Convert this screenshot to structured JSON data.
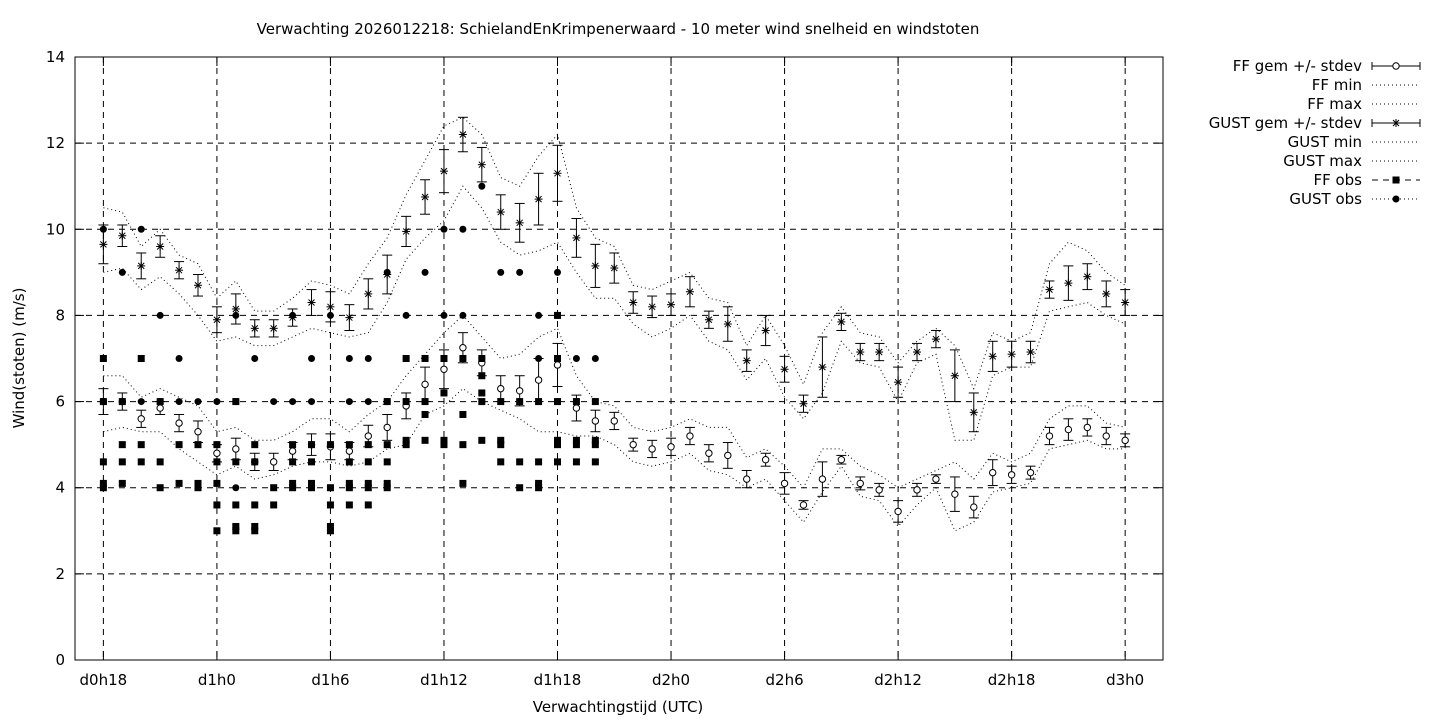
{
  "chart_data": {
    "type": "line",
    "title": "Verwachting 2026012218: SchielandEnKrimpenerwaard - 10 meter wind snelheid en windstoten",
    "xlabel": "Verwachtingstijd (UTC)",
    "ylabel": "Wind(stoten) (m/s)",
    "ylim": [
      0,
      14
    ],
    "yticks": [
      0,
      2,
      4,
      6,
      8,
      10,
      12,
      14
    ],
    "xlim": [
      -1.5,
      56
    ],
    "xticks": [
      {
        "x": 0,
        "label": "d0h18"
      },
      {
        "x": 6,
        "label": "d1h0"
      },
      {
        "x": 12,
        "label": "d1h6"
      },
      {
        "x": 18,
        "label": "d1h12"
      },
      {
        "x": 24,
        "label": "d1h18"
      },
      {
        "x": 30,
        "label": "d2h0"
      },
      {
        "x": 36,
        "label": "d2h6"
      },
      {
        "x": 42,
        "label": "d2h12"
      },
      {
        "x": 48,
        "label": "d2h18"
      },
      {
        "x": 54,
        "label": "d3h0"
      }
    ],
    "grid": true,
    "legend_position": "outside-right",
    "legend": [
      "FF gem +/- stdev",
      "FF min",
      "FF max",
      "GUST gem +/- stdev",
      "GUST min",
      "GUST max",
      "FF obs",
      "GUST obs"
    ],
    "x": [
      0,
      1,
      2,
      3,
      4,
      5,
      6,
      7,
      8,
      9,
      10,
      11,
      12,
      13,
      14,
      15,
      16,
      17,
      18,
      19,
      20,
      21,
      22,
      23,
      24,
      25,
      26,
      27,
      28,
      29,
      30,
      31,
      32,
      33,
      34,
      35,
      36,
      37,
      38,
      39,
      40,
      41,
      42,
      43,
      44,
      45,
      46,
      47,
      48,
      49,
      50,
      51,
      52,
      53,
      54
    ],
    "ff_mean": [
      6.0,
      6.0,
      5.6,
      5.85,
      5.5,
      5.3,
      4.8,
      4.9,
      4.6,
      4.6,
      4.85,
      5.0,
      4.95,
      4.85,
      5.2,
      5.4,
      5.9,
      6.4,
      6.75,
      7.25,
      6.9,
      6.3,
      6.25,
      6.5,
      6.85,
      5.85,
      5.55,
      5.55,
      5.0,
      4.9,
      4.95,
      5.2,
      4.8,
      4.75,
      4.2,
      4.65,
      4.1,
      3.6,
      4.2,
      4.65,
      4.1,
      3.95,
      3.45,
      3.95,
      4.2,
      3.85,
      3.55,
      4.35,
      4.3,
      4.35,
      5.2,
      5.35,
      5.4,
      5.2,
      5.1
    ],
    "ff_std": [
      0.3,
      0.2,
      0.2,
      0.15,
      0.2,
      0.25,
      0.2,
      0.25,
      0.2,
      0.2,
      0.2,
      0.25,
      0.3,
      0.2,
      0.25,
      0.3,
      0.3,
      0.4,
      0.45,
      0.35,
      0.3,
      0.3,
      0.35,
      0.5,
      0.5,
      0.3,
      0.25,
      0.2,
      0.15,
      0.2,
      0.2,
      0.2,
      0.2,
      0.3,
      0.2,
      0.15,
      0.25,
      0.1,
      0.4,
      0.1,
      0.15,
      0.15,
      0.25,
      0.15,
      0.1,
      0.4,
      0.25,
      0.3,
      0.2,
      0.15,
      0.2,
      0.25,
      0.2,
      0.2,
      0.15
    ],
    "ff_min": [
      5.3,
      5.4,
      5.3,
      5.3,
      4.9,
      4.6,
      4.3,
      4.5,
      4.2,
      4.3,
      4.5,
      4.6,
      4.6,
      4.5,
      4.6,
      4.9,
      5.0,
      5.7,
      5.9,
      6.3,
      6.0,
      5.8,
      5.6,
      5.3,
      5.3,
      5.2,
      5.2,
      5.0,
      4.6,
      4.5,
      4.6,
      4.8,
      4.4,
      4.3,
      4.0,
      4.2,
      3.7,
      3.2,
      3.9,
      4.5,
      3.8,
      3.7,
      3.1,
      3.6,
      4.0,
      3.0,
      3.2,
      3.9,
      4.0,
      4.1,
      4.9,
      5.0,
      5.1,
      4.9,
      4.9
    ],
    "ff_max": [
      6.6,
      6.6,
      6.1,
      6.3,
      6.1,
      5.9,
      5.3,
      5.4,
      5.1,
      5.1,
      5.3,
      5.6,
      5.6,
      5.3,
      5.7,
      6.0,
      6.6,
      7.1,
      7.6,
      8.0,
      7.5,
      7.0,
      7.1,
      7.5,
      7.7,
      6.6,
      6.0,
      5.9,
      5.4,
      5.3,
      5.4,
      5.6,
      5.4,
      5.4,
      4.7,
      4.9,
      4.5,
      4.0,
      4.9,
      4.9,
      4.5,
      4.3,
      4.0,
      4.2,
      4.4,
      4.6,
      4.2,
      4.8,
      4.6,
      4.8,
      5.6,
      5.9,
      5.9,
      5.5,
      5.4
    ],
    "gust_mean": [
      9.65,
      9.85,
      9.15,
      9.6,
      9.05,
      8.7,
      7.9,
      8.15,
      7.7,
      7.7,
      7.95,
      8.3,
      8.2,
      7.95,
      8.5,
      8.95,
      9.95,
      10.75,
      11.35,
      12.2,
      11.5,
      10.4,
      10.15,
      10.7,
      11.3,
      9.8,
      9.15,
      9.1,
      8.3,
      8.2,
      8.25,
      8.55,
      7.9,
      7.8,
      6.95,
      7.65,
      6.75,
      5.95,
      6.8,
      7.85,
      7.15,
      7.15,
      6.45,
      7.15,
      7.45,
      6.6,
      5.75,
      7.05,
      7.1,
      7.15,
      8.6,
      8.75,
      8.9,
      8.5,
      8.3
    ],
    "gust_std": [
      0.45,
      0.25,
      0.3,
      0.25,
      0.2,
      0.25,
      0.3,
      0.35,
      0.2,
      0.2,
      0.2,
      0.3,
      0.35,
      0.3,
      0.35,
      0.45,
      0.35,
      0.4,
      0.5,
      0.4,
      0.4,
      0.4,
      0.45,
      0.6,
      0.65,
      0.45,
      0.5,
      0.35,
      0.25,
      0.25,
      0.25,
      0.35,
      0.2,
      0.4,
      0.25,
      0.35,
      0.3,
      0.2,
      0.7,
      0.2,
      0.2,
      0.2,
      0.35,
      0.2,
      0.2,
      0.6,
      0.45,
      0.35,
      0.3,
      0.25,
      0.2,
      0.4,
      0.3,
      0.3,
      0.3
    ],
    "gust_min": [
      9.0,
      9.1,
      8.6,
      8.9,
      8.5,
      8.0,
      7.4,
      7.5,
      7.3,
      7.3,
      7.5,
      7.7,
      7.6,
      7.5,
      7.6,
      8.3,
      9.3,
      9.8,
      10.2,
      11.0,
      10.5,
      9.7,
      9.4,
      9.5,
      9.7,
      9.0,
      8.4,
      8.4,
      7.8,
      7.5,
      7.7,
      8.0,
      7.4,
      7.2,
      6.5,
      7.0,
      6.1,
      5.6,
      6.2,
      7.4,
      6.9,
      6.8,
      6.0,
      6.9,
      7.1,
      5.1,
      5.1,
      6.6,
      6.8,
      6.8,
      8.1,
      8.2,
      8.3,
      8.0,
      7.8
    ],
    "gust_max": [
      10.5,
      10.4,
      9.6,
      10.0,
      9.4,
      9.2,
      8.4,
      8.8,
      8.1,
      8.1,
      8.4,
      8.8,
      8.7,
      8.5,
      9.2,
      9.8,
      10.8,
      11.6,
      12.4,
      12.6,
      12.2,
      11.2,
      11.0,
      11.7,
      12.2,
      10.5,
      9.8,
      9.6,
      8.7,
      8.6,
      8.8,
      9.0,
      8.4,
      8.3,
      7.3,
      8.0,
      7.3,
      6.4,
      7.6,
      8.2,
      7.6,
      7.5,
      6.9,
      7.4,
      7.7,
      7.3,
      6.3,
      7.6,
      7.4,
      7.6,
      9.2,
      9.7,
      9.5,
      9.0,
      8.7
    ],
    "ff_obs": [
      [
        0,
        7
      ],
      [
        0,
        6
      ],
      [
        0,
        4.6
      ],
      [
        0,
        4.1
      ],
      [
        0,
        4
      ],
      [
        1,
        6
      ],
      [
        1,
        5
      ],
      [
        1,
        4.6
      ],
      [
        1,
        4.1
      ],
      [
        2,
        7
      ],
      [
        2,
        5
      ],
      [
        2,
        4.6
      ],
      [
        3,
        6
      ],
      [
        3,
        4.6
      ],
      [
        3,
        4
      ],
      [
        4,
        5
      ],
      [
        4,
        4.1
      ],
      [
        5,
        5
      ],
      [
        5,
        4.1
      ],
      [
        5,
        4
      ],
      [
        6,
        5
      ],
      [
        6,
        4.6
      ],
      [
        6,
        4.1
      ],
      [
        6,
        3.6
      ],
      [
        6,
        3
      ],
      [
        7,
        6
      ],
      [
        7,
        4.6
      ],
      [
        7,
        3.6
      ],
      [
        7,
        3.1
      ],
      [
        7,
        3
      ],
      [
        8,
        5
      ],
      [
        8,
        4.6
      ],
      [
        8,
        3.6
      ],
      [
        8,
        3.1
      ],
      [
        8,
        3
      ],
      [
        9,
        4
      ],
      [
        9,
        3.6
      ],
      [
        10,
        5
      ],
      [
        10,
        4.6
      ],
      [
        10,
        4.1
      ],
      [
        10,
        4
      ],
      [
        11,
        5
      ],
      [
        11,
        4.6
      ],
      [
        11,
        4.1
      ],
      [
        11,
        4
      ],
      [
        12,
        5
      ],
      [
        12,
        4
      ],
      [
        12,
        3.6
      ],
      [
        12,
        3.1
      ],
      [
        12,
        3
      ],
      [
        13,
        5
      ],
      [
        13,
        4.6
      ],
      [
        13,
        4.1
      ],
      [
        13,
        4
      ],
      [
        13,
        3.6
      ],
      [
        14,
        5
      ],
      [
        14,
        4.6
      ],
      [
        14,
        4.1
      ],
      [
        14,
        4
      ],
      [
        14,
        3.6
      ],
      [
        15,
        6
      ],
      [
        15,
        5
      ],
      [
        15,
        4.6
      ],
      [
        15,
        4.1
      ],
      [
        15,
        4
      ],
      [
        16,
        7
      ],
      [
        16,
        6
      ],
      [
        16,
        5.1
      ],
      [
        16,
        5
      ],
      [
        17,
        7
      ],
      [
        17,
        6
      ],
      [
        17,
        5.7
      ],
      [
        17,
        5.1
      ],
      [
        18,
        7
      ],
      [
        18,
        6.2
      ],
      [
        18,
        5.1
      ],
      [
        18,
        5
      ],
      [
        19,
        7
      ],
      [
        19,
        5.7
      ],
      [
        19,
        5
      ],
      [
        19,
        4.1
      ],
      [
        20,
        7
      ],
      [
        20,
        6.6
      ],
      [
        20,
        6.2
      ],
      [
        20,
        6
      ],
      [
        20,
        5.1
      ],
      [
        21,
        6
      ],
      [
        21,
        5.1
      ],
      [
        21,
        5
      ],
      [
        21,
        4.6
      ],
      [
        22,
        6
      ],
      [
        22,
        4.6
      ],
      [
        22,
        4
      ],
      [
        23,
        6
      ],
      [
        23,
        4.6
      ],
      [
        23,
        4.1
      ],
      [
        23,
        4
      ],
      [
        24,
        8
      ],
      [
        24,
        7
      ],
      [
        24,
        6
      ],
      [
        24,
        5.1
      ],
      [
        24,
        5
      ],
      [
        24,
        4.6
      ],
      [
        25,
        6
      ],
      [
        25,
        5.1
      ],
      [
        25,
        5
      ],
      [
        25,
        4.6
      ],
      [
        26,
        6
      ],
      [
        26,
        5.1
      ],
      [
        26,
        5
      ],
      [
        26,
        4.6
      ]
    ],
    "gust_obs": [
      [
        0,
        10
      ],
      [
        0,
        6
      ],
      [
        1,
        9
      ],
      [
        1,
        6
      ],
      [
        2,
        10
      ],
      [
        2,
        6
      ],
      [
        3,
        8
      ],
      [
        3,
        6
      ],
      [
        4,
        7
      ],
      [
        4,
        6
      ],
      [
        5,
        6
      ],
      [
        6,
        6
      ],
      [
        6,
        5
      ],
      [
        7,
        8
      ],
      [
        7,
        6
      ],
      [
        7,
        4
      ],
      [
        8,
        7
      ],
      [
        9,
        6
      ],
      [
        10,
        8
      ],
      [
        10,
        6
      ],
      [
        11,
        7
      ],
      [
        11,
        6
      ],
      [
        12,
        8
      ],
      [
        12,
        5
      ],
      [
        13,
        7
      ],
      [
        13,
        6
      ],
      [
        14,
        7
      ],
      [
        14,
        6
      ],
      [
        15,
        9
      ],
      [
        15,
        6
      ],
      [
        16,
        8
      ],
      [
        16,
        7
      ],
      [
        17,
        9
      ],
      [
        17,
        7
      ],
      [
        18,
        10
      ],
      [
        18,
        8
      ],
      [
        19,
        10
      ],
      [
        19,
        8
      ],
      [
        20,
        11
      ],
      [
        20,
        7
      ],
      [
        21,
        9
      ],
      [
        22,
        9
      ],
      [
        23,
        8
      ],
      [
        23,
        7
      ],
      [
        24,
        9
      ],
      [
        24,
        7
      ],
      [
        25,
        7
      ],
      [
        26,
        7
      ]
    ]
  }
}
